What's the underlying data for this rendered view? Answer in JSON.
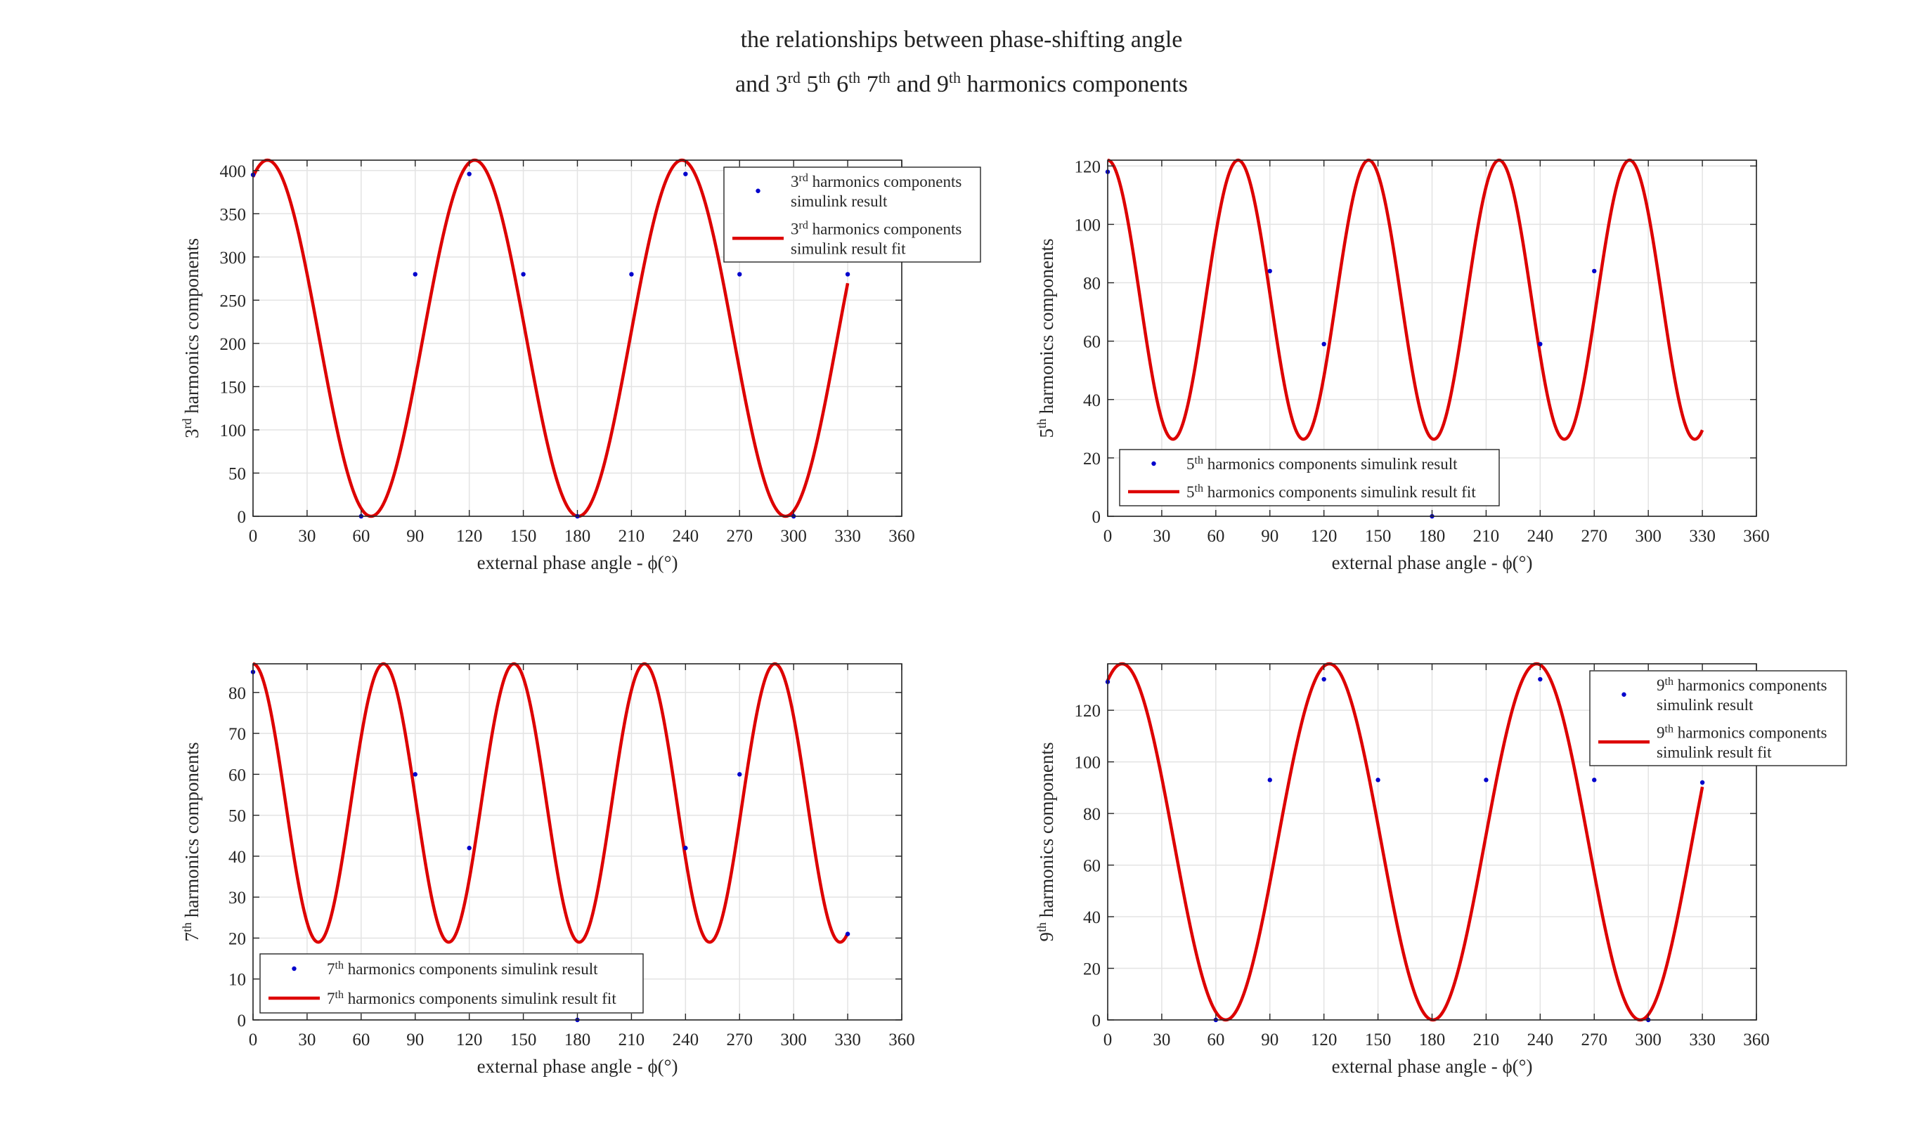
{
  "figure": {
    "title_line1": "the relationships between phase-shifting angle",
    "title_line2": [
      {
        "t": "and 3"
      },
      {
        "t": "rd",
        "sup": true
      },
      {
        "t": " 5"
      },
      {
        "t": "th",
        "sup": true
      },
      {
        "t": " 6"
      },
      {
        "t": "th",
        "sup": true
      },
      {
        "t": " 7"
      },
      {
        "t": "th",
        "sup": true
      },
      {
        "t": " and 9"
      },
      {
        "t": "th",
        "sup": true
      },
      {
        "t": " harmonics components"
      }
    ]
  },
  "colors": {
    "points": "#0000cc",
    "fit": "#dd0000",
    "grid": "#e3e3e3",
    "axis": "#262626"
  },
  "chart_data": [
    {
      "type": "scatter",
      "id": "h3",
      "title": "",
      "xlabel": "external phase angle - ϕ(°)",
      "ylabel": [
        {
          "t": "3"
        },
        {
          "t": "rd",
          "sup": true
        },
        {
          "t": " harmonics components"
        }
      ],
      "xlim": [
        0,
        360
      ],
      "ylim": [
        0,
        412
      ],
      "xticks": [
        0,
        30,
        60,
        90,
        120,
        150,
        180,
        210,
        240,
        270,
        300,
        330,
        360
      ],
      "yticks": [
        0,
        50,
        100,
        150,
        200,
        250,
        300,
        350,
        400
      ],
      "grid": true,
      "legend_position": "top-right-outside",
      "series": [
        {
          "name": [
            {
              "t": "3"
            },
            {
              "t": "rd",
              "sup": true
            },
            {
              "t": " harmonics components"
            }
          ],
          "name_line2": "simulink result",
          "kind": "points",
          "x": [
            0,
            60,
            90,
            120,
            150,
            180,
            210,
            240,
            270,
            300,
            330
          ],
          "y": [
            395,
            0,
            280,
            396,
            280,
            0,
            280,
            396,
            280,
            0,
            280
          ]
        },
        {
          "name": [
            {
              "t": "3"
            },
            {
              "t": "rd",
              "sup": true
            },
            {
              "t": " harmonics components"
            }
          ],
          "name_line2": "simulink result fit",
          "kind": "line",
          "model": {
            "offset": 206,
            "amplitude": 206,
            "period": 115,
            "peak_x": 8,
            "x_range": [
              0,
              330
            ]
          }
        }
      ]
    },
    {
      "type": "scatter",
      "id": "h5",
      "title": "",
      "xlabel": "external phase angle - ϕ(°)",
      "ylabel": [
        {
          "t": "5"
        },
        {
          "t": "th",
          "sup": true
        },
        {
          "t": " harmonics components"
        }
      ],
      "xlim": [
        0,
        360
      ],
      "ylim": [
        0,
        122
      ],
      "xticks": [
        0,
        30,
        60,
        90,
        120,
        150,
        180,
        210,
        240,
        270,
        300,
        330,
        360
      ],
      "yticks": [
        0,
        20,
        40,
        60,
        80,
        100,
        120
      ],
      "grid": true,
      "legend_position": "bottom-left",
      "series": [
        {
          "name": [
            {
              "t": "5"
            },
            {
              "t": "th",
              "sup": true
            },
            {
              "t": " harmonics components simulink result"
            }
          ],
          "name_line2": "",
          "kind": "points",
          "x": [
            0,
            90,
            120,
            180,
            240,
            270
          ],
          "y": [
            118,
            84,
            59,
            0,
            59,
            84
          ]
        },
        {
          "name": [
            {
              "t": "5"
            },
            {
              "t": "th",
              "sup": true
            },
            {
              "t": " harmonics components simulink result fit"
            }
          ],
          "name_line2": "",
          "kind": "line",
          "model": {
            "offset": 74.2,
            "amplitude": 47.8,
            "period": 72.4,
            "peak_x": 0,
            "x_range": [
              0,
              330
            ]
          }
        }
      ]
    },
    {
      "type": "scatter",
      "id": "h7",
      "title": "",
      "xlabel": "external phase angle - ϕ(°)",
      "ylabel": [
        {
          "t": "7"
        },
        {
          "t": "th",
          "sup": true
        },
        {
          "t": " harmonics components"
        }
      ],
      "xlim": [
        0,
        360
      ],
      "ylim": [
        0,
        87
      ],
      "xticks": [
        0,
        30,
        60,
        90,
        120,
        150,
        180,
        210,
        240,
        270,
        300,
        330,
        360
      ],
      "yticks": [
        0,
        10,
        20,
        30,
        40,
        50,
        60,
        70,
        80
      ],
      "grid": true,
      "legend_position": "bottom-left",
      "series": [
        {
          "name": [
            {
              "t": "7"
            },
            {
              "t": "th",
              "sup": true
            },
            {
              "t": " harmonics components simulink result"
            }
          ],
          "name_line2": "",
          "kind": "points",
          "x": [
            0,
            90,
            120,
            180,
            240,
            270,
            330
          ],
          "y": [
            85,
            60,
            42,
            0,
            42,
            60,
            21
          ]
        },
        {
          "name": [
            {
              "t": "7"
            },
            {
              "t": "th",
              "sup": true
            },
            {
              "t": " harmonics components simulink result fit"
            }
          ],
          "name_line2": "",
          "kind": "line",
          "model": {
            "offset": 53,
            "amplitude": 34,
            "period": 72.4,
            "peak_x": 0,
            "x_range": [
              0,
              330
            ]
          }
        }
      ]
    },
    {
      "type": "scatter",
      "id": "h9",
      "title": "",
      "xlabel": "external phase angle - ϕ(°)",
      "ylabel": [
        {
          "t": "9"
        },
        {
          "t": "th",
          "sup": true
        },
        {
          "t": " harmonics components"
        }
      ],
      "xlim": [
        0,
        360
      ],
      "ylim": [
        0,
        138
      ],
      "xticks": [
        0,
        30,
        60,
        90,
        120,
        150,
        180,
        210,
        240,
        270,
        300,
        330,
        360
      ],
      "yticks": [
        0,
        20,
        40,
        60,
        80,
        100,
        120
      ],
      "grid": true,
      "legend_position": "top-right-outside",
      "series": [
        {
          "name": [
            {
              "t": "9"
            },
            {
              "t": "th",
              "sup": true
            },
            {
              "t": " harmonics components"
            }
          ],
          "name_line2": "simulink result",
          "kind": "points",
          "x": [
            0,
            60,
            90,
            120,
            150,
            210,
            240,
            270,
            300,
            330
          ],
          "y": [
            131,
            0,
            93,
            132,
            93,
            93,
            132,
            93,
            0,
            92
          ]
        },
        {
          "name": [
            {
              "t": "9"
            },
            {
              "t": "th",
              "sup": true
            },
            {
              "t": " harmonics components"
            }
          ],
          "name_line2": "simulink result fit",
          "kind": "line",
          "model": {
            "offset": 69,
            "amplitude": 69,
            "period": 115,
            "peak_x": 8,
            "x_range": [
              0,
              330
            ]
          }
        }
      ]
    }
  ]
}
